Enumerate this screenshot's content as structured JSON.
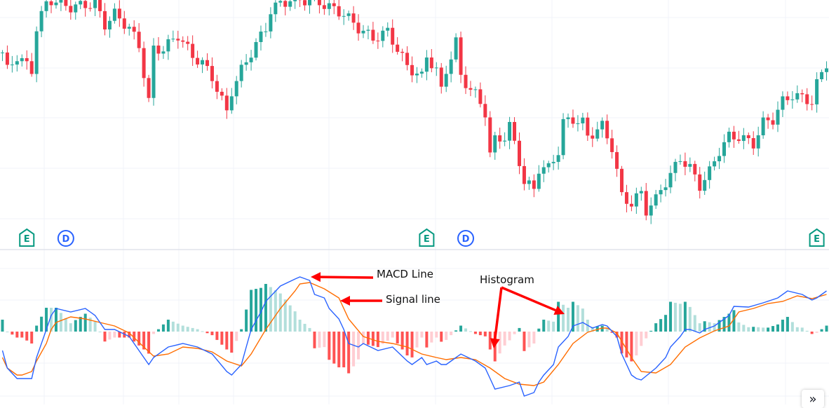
{
  "chart_data": {
    "type": "candlestick",
    "price": {
      "ylim": [
        0,
        100
      ],
      "closes": [
        [
          0,
          78.6
        ],
        [
          1,
          71.4
        ],
        [
          3,
          77.1
        ],
        [
          6,
          71.4
        ],
        [
          7,
          88.6
        ],
        [
          9,
          98.6
        ],
        [
          10,
          100
        ],
        [
          14,
          97.1
        ],
        [
          19,
          98.6
        ],
        [
          21,
          90
        ],
        [
          23,
          94.3
        ],
        [
          26,
          88.6
        ],
        [
          28,
          81.4
        ],
        [
          30,
          58.6
        ],
        [
          31,
          80
        ],
        [
          33,
          80
        ],
        [
          36,
          85.7
        ],
        [
          39,
          77.1
        ],
        [
          41,
          74.3
        ],
        [
          43,
          68.6
        ],
        [
          46,
          54.3
        ],
        [
          47,
          62.9
        ],
        [
          49,
          71.4
        ],
        [
          51,
          78.6
        ],
        [
          54,
          88.6
        ],
        [
          55,
          95.7
        ],
        [
          57,
          98.6
        ],
        [
          59,
          100
        ],
        [
          64,
          100
        ],
        [
          67,
          97.1
        ],
        [
          70,
          94.3
        ],
        [
          73,
          88.6
        ],
        [
          76,
          84.3
        ],
        [
          79,
          87.1
        ],
        [
          81,
          80
        ],
        [
          83,
          72.9
        ],
        [
          86,
          68.6
        ],
        [
          87,
          77.1
        ],
        [
          89,
          71.4
        ],
        [
          90,
          62.9
        ],
        [
          91,
          71.4
        ],
        [
          93,
          82.9
        ],
        [
          94,
          68.6
        ],
        [
          97,
          61.4
        ],
        [
          99,
          54.3
        ],
        [
          100,
          37.1
        ],
        [
          101,
          42.9
        ],
        [
          103,
          44.3
        ],
        [
          104,
          48.6
        ],
        [
          106,
          34.3
        ],
        [
          107,
          25.7
        ],
        [
          109,
          22.9
        ],
        [
          110,
          31.4
        ],
        [
          112,
          31.4
        ],
        [
          114,
          38.6
        ],
        [
          115,
          50
        ],
        [
          117,
          51.4
        ],
        [
          119,
          50
        ],
        [
          120,
          44.3
        ],
        [
          121,
          45.7
        ],
        [
          123,
          48.6
        ],
        [
          125,
          40
        ],
        [
          126,
          30
        ],
        [
          127,
          20
        ],
        [
          129,
          17.1
        ],
        [
          131,
          21.4
        ],
        [
          132,
          14.3
        ],
        [
          134,
          18.6
        ],
        [
          135,
          22.9
        ],
        [
          137,
          28.6
        ],
        [
          139,
          35.7
        ],
        [
          141,
          31.4
        ],
        [
          143,
          24.3
        ],
        [
          145,
          30
        ],
        [
          147,
          38.6
        ],
        [
          149,
          44.3
        ],
        [
          151,
          44.3
        ],
        [
          154,
          41.4
        ],
        [
          156,
          50
        ],
        [
          158,
          51.4
        ],
        [
          160,
          58.6
        ],
        [
          162,
          61.4
        ],
        [
          164,
          60
        ],
        [
          166,
          58.6
        ],
        [
          167,
          65.7
        ],
        [
          169,
          74.3
        ]
      ],
      "up_color": "#26a69a",
      "down_color": "#f23645",
      "events": [
        {
          "bar": 5,
          "label": "E",
          "color": "#089981"
        },
        {
          "bar": 13,
          "label": "D",
          "color": "#2962ff"
        },
        {
          "bar": 87,
          "label": "E",
          "color": "#089981"
        },
        {
          "bar": 95,
          "label": "D",
          "color": "#2962ff"
        },
        {
          "bar": 167,
          "label": "E",
          "color": "#089981"
        }
      ]
    },
    "macd": {
      "ylim": [
        -5.2,
        5.8
      ],
      "macd_color": "#2962ff",
      "signal_color": "#ff6d00",
      "hist_colors": {
        "pos_rising": "#26a69a",
        "pos_falling": "#b2dfdb",
        "neg_falling": "#ff5252",
        "neg_rising": "#ffcdd2"
      },
      "macd_line": [
        [
          0,
          -1.35
        ],
        [
          1,
          -2.6
        ],
        [
          3,
          -3.35
        ],
        [
          6,
          -3.35
        ],
        [
          7,
          -1.85
        ],
        [
          9,
          0.15
        ],
        [
          10,
          1.15
        ],
        [
          11,
          1.65
        ],
        [
          14,
          1.4
        ],
        [
          17,
          1.65
        ],
        [
          19,
          1.15
        ],
        [
          20,
          0.65
        ],
        [
          21,
          0.15
        ],
        [
          23,
          0.15
        ],
        [
          26,
          -0.35
        ],
        [
          29,
          -1.85
        ],
        [
          30,
          -2.35
        ],
        [
          31,
          -1.85
        ],
        [
          34,
          -1.1
        ],
        [
          37,
          -0.85
        ],
        [
          40,
          -1.1
        ],
        [
          43,
          -1.6
        ],
        [
          46,
          -2.85
        ],
        [
          47,
          -3.1
        ],
        [
          49,
          -2.35
        ],
        [
          50,
          -1.1
        ],
        [
          51,
          0.15
        ],
        [
          53,
          1.4
        ],
        [
          54,
          2.15
        ],
        [
          57,
          3.25
        ],
        [
          60,
          3.75
        ],
        [
          61,
          3.9
        ],
        [
          63,
          3.65
        ],
        [
          64,
          2.65
        ],
        [
          66,
          2.4
        ],
        [
          67,
          1.65
        ],
        [
          69,
          0.9
        ],
        [
          70,
          0.15
        ],
        [
          71,
          -0.85
        ],
        [
          73,
          -1.1
        ],
        [
          74,
          -0.85
        ],
        [
          77,
          -1.35
        ],
        [
          80,
          -1.1
        ],
        [
          83,
          -2.1
        ],
        [
          84,
          -2.35
        ],
        [
          86,
          -1.85
        ],
        [
          87,
          -2.35
        ],
        [
          89,
          -2.1
        ],
        [
          90,
          -2.35
        ],
        [
          91,
          -2.35
        ],
        [
          93,
          -1.85
        ],
        [
          94,
          -1.6
        ],
        [
          97,
          -2.1
        ],
        [
          99,
          -2.6
        ],
        [
          100,
          -3.35
        ],
        [
          101,
          -4.1
        ],
        [
          104,
          -3.85
        ],
        [
          106,
          -3.6
        ],
        [
          107,
          -4.6
        ],
        [
          109,
          -4.35
        ],
        [
          110,
          -3.6
        ],
        [
          111,
          -3.1
        ],
        [
          113,
          -2.35
        ],
        [
          114,
          -1.1
        ],
        [
          116,
          -0.35
        ],
        [
          117,
          0.4
        ],
        [
          119,
          0.65
        ],
        [
          121,
          0.25
        ],
        [
          123,
          0.5
        ],
        [
          124,
          0.4
        ],
        [
          126,
          -0.35
        ],
        [
          127,
          -1.6
        ],
        [
          129,
          -3.1
        ],
        [
          130,
          -3.35
        ],
        [
          131,
          -3.45
        ],
        [
          134,
          -2.6
        ],
        [
          136,
          -1.85
        ],
        [
          137,
          -1.1
        ],
        [
          139,
          -0.35
        ],
        [
          140,
          0.15
        ],
        [
          141,
          0.15
        ],
        [
          143,
          -0.1
        ],
        [
          144,
          0.15
        ],
        [
          146,
          0.4
        ],
        [
          149,
          1.15
        ],
        [
          150,
          1.8
        ],
        [
          153,
          1.75
        ],
        [
          156,
          2.05
        ],
        [
          159,
          2.4
        ],
        [
          161,
          2.9
        ],
        [
          164,
          2.65
        ],
        [
          166,
          2.25
        ],
        [
          167,
          2.4
        ],
        [
          169,
          2.9
        ]
      ],
      "signal_line": [
        [
          0,
          -1.85
        ],
        [
          1,
          -2.6
        ],
        [
          3,
          -3.1
        ],
        [
          4,
          -3.1
        ],
        [
          6,
          -2.85
        ],
        [
          7,
          -2.1
        ],
        [
          9,
          -0.85
        ],
        [
          10,
          0.15
        ],
        [
          11,
          0.65
        ],
        [
          14,
          1.05
        ],
        [
          17,
          0.9
        ],
        [
          20,
          0.65
        ],
        [
          23,
          0.4
        ],
        [
          26,
          -0.1
        ],
        [
          29,
          -1.1
        ],
        [
          31,
          -1.75
        ],
        [
          34,
          -1.6
        ],
        [
          37,
          -1.1
        ],
        [
          40,
          -1.2
        ],
        [
          43,
          -1.45
        ],
        [
          46,
          -2.1
        ],
        [
          49,
          -2.45
        ],
        [
          51,
          -1.6
        ],
        [
          54,
          0.15
        ],
        [
          57,
          1.65
        ],
        [
          60,
          2.9
        ],
        [
          61,
          3.4
        ],
        [
          63,
          3.5
        ],
        [
          66,
          3.05
        ],
        [
          69,
          2.4
        ],
        [
          71,
          0.9
        ],
        [
          74,
          -0.35
        ],
        [
          77,
          -0.7
        ],
        [
          80,
          -0.85
        ],
        [
          83,
          -1.1
        ],
        [
          86,
          -1.6
        ],
        [
          89,
          -1.85
        ],
        [
          91,
          -2.0
        ],
        [
          94,
          -1.85
        ],
        [
          97,
          -2.0
        ],
        [
          100,
          -2.6
        ],
        [
          103,
          -3.35
        ],
        [
          106,
          -3.75
        ],
        [
          109,
          -3.85
        ],
        [
          111,
          -3.6
        ],
        [
          114,
          -2.35
        ],
        [
          117,
          -0.85
        ],
        [
          120,
          -0.05
        ],
        [
          123,
          0.25
        ],
        [
          124,
          0.25
        ],
        [
          126,
          -0.1
        ],
        [
          129,
          -1.85
        ],
        [
          131,
          -2.85
        ],
        [
          134,
          -2.95
        ],
        [
          137,
          -2.35
        ],
        [
          140,
          -1.1
        ],
        [
          143,
          -0.45
        ],
        [
          146,
          0.05
        ],
        [
          149,
          0.4
        ],
        [
          151,
          1.4
        ],
        [
          154,
          1.65
        ],
        [
          157,
          2.0
        ],
        [
          160,
          2.15
        ],
        [
          163,
          2.55
        ],
        [
          166,
          2.35
        ],
        [
          169,
          2.65
        ]
      ]
    },
    "annotations": {
      "macd_label": "MACD Line",
      "signal_label": "Signal line",
      "histogram_label": "Histogram",
      "arrow_color": "#ff0000"
    }
  },
  "controls": {
    "scroll_icon": "double-chevron-right-icon",
    "scroll_glyph": "»"
  }
}
